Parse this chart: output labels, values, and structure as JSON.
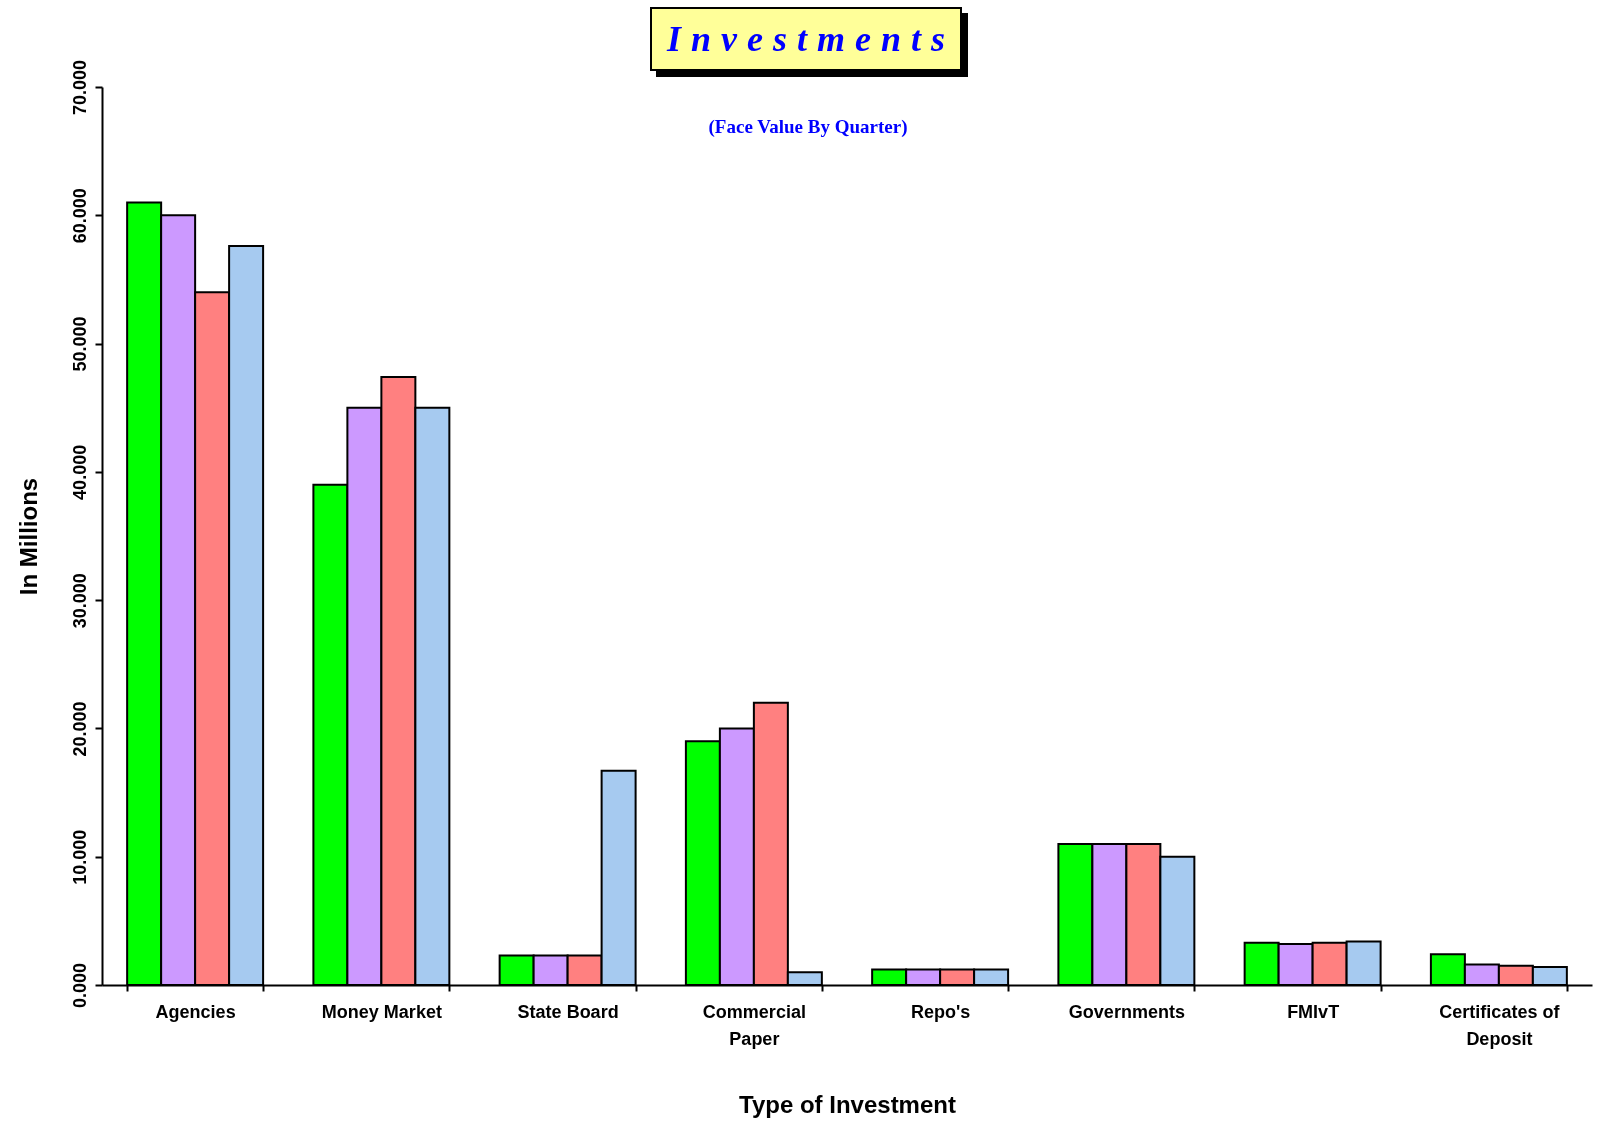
{
  "chart_data": {
    "type": "bar",
    "title": "Investments",
    "subtitle": "(Face Value By Quarter)",
    "xlabel": "Type of Investment",
    "ylabel": "In Millions",
    "categories": [
      "Agencies",
      "Money Market",
      "State Board",
      "Commercial Paper",
      "Repo's",
      "Governments",
      "FMIvT",
      "Certificates of Deposit"
    ],
    "series": [
      {
        "color": "#00ff00",
        "values": [
          61,
          39,
          2.3,
          19,
          1.2,
          11,
          3.3,
          2.4
        ]
      },
      {
        "color": "#cc99ff",
        "values": [
          60,
          45,
          2.3,
          20,
          1.2,
          11,
          3.2,
          1.6
        ]
      },
      {
        "color": "#ff8080",
        "values": [
          54,
          47.4,
          2.3,
          22,
          1.2,
          11,
          3.3,
          1.5
        ]
      },
      {
        "color": "#a6caf0",
        "values": [
          57.6,
          45,
          16.7,
          1,
          1.2,
          10,
          3.4,
          1.4
        ]
      }
    ],
    "ylim": [
      0,
      70
    ],
    "yticks": [
      {
        "value": 0,
        "label": "0.000"
      },
      {
        "value": 10,
        "label": "10.000"
      },
      {
        "value": 20,
        "label": "20.000"
      },
      {
        "value": 30,
        "label": "30.000"
      },
      {
        "value": 40,
        "label": "40.000"
      },
      {
        "value": 50,
        "label": "50.000"
      },
      {
        "value": 60,
        "label": "60.000"
      },
      {
        "value": 70,
        "label": "70.000"
      }
    ],
    "grid": false,
    "legend": false
  }
}
